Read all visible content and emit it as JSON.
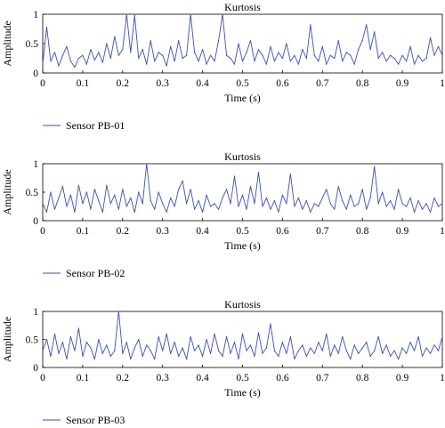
{
  "chart_data": [
    {
      "type": "line",
      "title": "Kurtosis",
      "xlabel": "Time (s)",
      "ylabel": "Amplitude",
      "xlim": [
        0,
        1
      ],
      "ylim": [
        0,
        1
      ],
      "xticks": [
        "0",
        "0.1",
        "0.2",
        "0.3",
        "0.4",
        "0.5",
        "0.6",
        "0.7",
        "0.8",
        "0.9",
        "1"
      ],
      "yticks": [
        "0",
        "0.5",
        "1"
      ],
      "grid": false,
      "legend_position": "bottom-left",
      "series": [
        {
          "name": "Sensor PB-01",
          "color": "#3a4fb0",
          "x": [
            0,
            0.01,
            0.02,
            0.03,
            0.04,
            0.05,
            0.06,
            0.07,
            0.08,
            0.09,
            0.1,
            0.11,
            0.12,
            0.13,
            0.14,
            0.15,
            0.16,
            0.17,
            0.18,
            0.19,
            0.2,
            0.21,
            0.22,
            0.23,
            0.24,
            0.25,
            0.26,
            0.27,
            0.28,
            0.29,
            0.3,
            0.31,
            0.32,
            0.33,
            0.34,
            0.35,
            0.36,
            0.37,
            0.38,
            0.39,
            0.4,
            0.41,
            0.42,
            0.43,
            0.44,
            0.45,
            0.46,
            0.47,
            0.48,
            0.49,
            0.5,
            0.51,
            0.52,
            0.53,
            0.54,
            0.55,
            0.56,
            0.57,
            0.58,
            0.59,
            0.6,
            0.61,
            0.62,
            0.63,
            0.64,
            0.65,
            0.66,
            0.67,
            0.68,
            0.69,
            0.7,
            0.71,
            0.72,
            0.73,
            0.74,
            0.75,
            0.76,
            0.77,
            0.78,
            0.79,
            0.8,
            0.81,
            0.82,
            0.83,
            0.84,
            0.85,
            0.86,
            0.87,
            0.88,
            0.89,
            0.9,
            0.91,
            0.92,
            0.93,
            0.94,
            0.95,
            0.96,
            0.97,
            0.98,
            0.99,
            1
          ],
          "y": [
            0.15,
            0.78,
            0.2,
            0.35,
            0.12,
            0.3,
            0.45,
            0.2,
            0.1,
            0.25,
            0.3,
            0.15,
            0.4,
            0.22,
            0.35,
            0.18,
            0.5,
            0.25,
            0.62,
            0.3,
            0.4,
            1.0,
            0.35,
            0.98,
            0.25,
            0.4,
            0.15,
            0.55,
            0.2,
            0.35,
            0.3,
            0.12,
            0.45,
            0.2,
            0.55,
            0.25,
            0.3,
            1.0,
            0.35,
            0.2,
            0.4,
            0.15,
            0.3,
            0.2,
            0.55,
            1.0,
            0.3,
            0.25,
            0.15,
            0.5,
            0.2,
            0.35,
            0.55,
            0.2,
            0.4,
            0.3,
            0.15,
            0.45,
            0.2,
            0.35,
            0.25,
            0.5,
            0.2,
            0.3,
            0.15,
            0.4,
            0.25,
            0.82,
            0.3,
            0.2,
            0.45,
            0.15,
            0.3,
            0.25,
            0.55,
            0.2,
            0.35,
            0.3,
            0.15,
            0.4,
            0.55,
            0.82,
            0.4,
            0.7,
            0.25,
            0.35,
            0.2,
            0.3,
            0.25,
            0.15,
            0.3,
            0.2,
            0.45,
            0.15,
            0.3,
            0.2,
            0.25,
            0.6,
            0.3,
            0.45,
            0.3
          ]
        }
      ]
    },
    {
      "type": "line",
      "title": "Kurtosis",
      "xlabel": "Time (s)",
      "ylabel": "Amplitude",
      "xlim": [
        0,
        1
      ],
      "ylim": [
        0,
        1
      ],
      "xticks": [
        "0",
        "0.1",
        "0.2",
        "0.3",
        "0.4",
        "0.5",
        "0.6",
        "0.7",
        "0.8",
        "0.9",
        "1"
      ],
      "yticks": [
        "0",
        "0.5",
        "1"
      ],
      "grid": false,
      "legend_position": "bottom-left",
      "series": [
        {
          "name": "Sensor PB-02",
          "color": "#3a4fb0",
          "x": [
            0,
            0.01,
            0.02,
            0.03,
            0.04,
            0.05,
            0.06,
            0.07,
            0.08,
            0.09,
            0.1,
            0.11,
            0.12,
            0.13,
            0.14,
            0.15,
            0.16,
            0.17,
            0.18,
            0.19,
            0.2,
            0.21,
            0.22,
            0.23,
            0.24,
            0.25,
            0.26,
            0.27,
            0.28,
            0.29,
            0.3,
            0.31,
            0.32,
            0.33,
            0.34,
            0.35,
            0.36,
            0.37,
            0.38,
            0.39,
            0.4,
            0.41,
            0.42,
            0.43,
            0.44,
            0.45,
            0.46,
            0.47,
            0.48,
            0.49,
            0.5,
            0.51,
            0.52,
            0.53,
            0.54,
            0.55,
            0.56,
            0.57,
            0.58,
            0.59,
            0.6,
            0.61,
            0.62,
            0.63,
            0.64,
            0.65,
            0.66,
            0.67,
            0.68,
            0.69,
            0.7,
            0.71,
            0.72,
            0.73,
            0.74,
            0.75,
            0.76,
            0.77,
            0.78,
            0.79,
            0.8,
            0.81,
            0.82,
            0.83,
            0.84,
            0.85,
            0.86,
            0.87,
            0.88,
            0.89,
            0.9,
            0.91,
            0.92,
            0.93,
            0.94,
            0.95,
            0.96,
            0.97,
            0.98,
            0.99,
            1
          ],
          "y": [
            0.3,
            0.15,
            0.5,
            0.2,
            0.4,
            0.6,
            0.25,
            0.45,
            0.15,
            0.62,
            0.3,
            0.5,
            0.2,
            0.55,
            0.35,
            0.15,
            0.62,
            0.3,
            0.45,
            0.2,
            0.55,
            0.25,
            0.4,
            0.15,
            0.5,
            0.3,
            1.0,
            0.35,
            0.2,
            0.5,
            0.3,
            0.15,
            0.4,
            0.25,
            0.55,
            0.7,
            0.3,
            0.55,
            0.2,
            0.35,
            0.15,
            0.45,
            0.25,
            0.3,
            0.2,
            0.4,
            0.55,
            0.3,
            0.78,
            0.25,
            0.45,
            0.2,
            0.6,
            0.3,
            0.85,
            0.25,
            0.4,
            0.2,
            0.35,
            0.15,
            0.45,
            0.3,
            0.82,
            0.25,
            0.4,
            0.2,
            0.35,
            0.15,
            0.3,
            0.25,
            0.4,
            0.55,
            0.3,
            0.2,
            0.6,
            0.35,
            0.2,
            0.45,
            0.25,
            0.3,
            0.55,
            0.2,
            0.4,
            0.95,
            0.3,
            0.5,
            0.25,
            0.35,
            0.2,
            0.55,
            0.3,
            0.25,
            0.4,
            0.15,
            0.35,
            0.2,
            0.3,
            0.15,
            0.4,
            0.25,
            0.3
          ]
        }
      ]
    },
    {
      "type": "line",
      "title": "Kurtosis",
      "xlabel": "Time (s)",
      "ylabel": "Amplitude",
      "xlim": [
        0,
        1
      ],
      "ylim": [
        0,
        1
      ],
      "xticks": [
        "0",
        "0.1",
        "0.2",
        "0.3",
        "0.4",
        "0.5",
        "0.6",
        "0.7",
        "0.8",
        "0.9",
        "1"
      ],
      "yticks": [
        "0",
        "0.5",
        "1"
      ],
      "grid": false,
      "legend_position": "bottom-left",
      "series": [
        {
          "name": "Sensor PB-03",
          "color": "#3a4fb0",
          "x": [
            0,
            0.01,
            0.02,
            0.03,
            0.04,
            0.05,
            0.06,
            0.07,
            0.08,
            0.09,
            0.1,
            0.11,
            0.12,
            0.13,
            0.14,
            0.15,
            0.16,
            0.17,
            0.18,
            0.19,
            0.2,
            0.21,
            0.22,
            0.23,
            0.24,
            0.25,
            0.26,
            0.27,
            0.28,
            0.29,
            0.3,
            0.31,
            0.32,
            0.33,
            0.34,
            0.35,
            0.36,
            0.37,
            0.38,
            0.39,
            0.4,
            0.41,
            0.42,
            0.43,
            0.44,
            0.45,
            0.46,
            0.47,
            0.48,
            0.49,
            0.5,
            0.51,
            0.52,
            0.53,
            0.54,
            0.55,
            0.56,
            0.57,
            0.58,
            0.59,
            0.6,
            0.61,
            0.62,
            0.63,
            0.64,
            0.65,
            0.66,
            0.67,
            0.68,
            0.69,
            0.7,
            0.71,
            0.72,
            0.73,
            0.74,
            0.75,
            0.76,
            0.77,
            0.78,
            0.79,
            0.8,
            0.81,
            0.82,
            0.83,
            0.84,
            0.85,
            0.86,
            0.87,
            0.88,
            0.89,
            0.9,
            0.91,
            0.92,
            0.93,
            0.94,
            0.95,
            0.96,
            0.97,
            0.98,
            0.99,
            1
          ],
          "y": [
            0.3,
            0.5,
            0.2,
            0.6,
            0.25,
            0.45,
            0.15,
            0.55,
            0.3,
            0.7,
            0.2,
            0.45,
            0.35,
            0.15,
            0.5,
            0.25,
            0.4,
            0.2,
            0.3,
            1.0,
            0.25,
            0.45,
            0.15,
            0.35,
            0.5,
            0.2,
            0.4,
            0.3,
            0.15,
            0.55,
            0.3,
            0.6,
            0.25,
            0.45,
            0.2,
            0.35,
            0.15,
            0.55,
            0.3,
            0.4,
            0.2,
            0.5,
            0.25,
            0.6,
            0.3,
            0.2,
            0.55,
            0.25,
            0.45,
            0.15,
            0.6,
            0.3,
            0.4,
            0.2,
            0.62,
            0.25,
            0.35,
            0.78,
            0.3,
            0.2,
            0.45,
            0.25,
            0.55,
            0.15,
            0.3,
            0.4,
            0.2,
            0.35,
            0.25,
            0.45,
            0.3,
            0.6,
            0.2,
            0.4,
            0.25,
            0.55,
            0.3,
            0.15,
            0.4,
            0.25,
            0.35,
            0.45,
            0.2,
            0.3,
            0.55,
            0.25,
            0.4,
            0.2,
            0.3,
            0.15,
            0.35,
            0.25,
            0.45,
            0.3,
            0.55,
            0.2,
            0.35,
            0.25,
            0.4,
            0.3,
            0.55
          ]
        }
      ]
    }
  ]
}
